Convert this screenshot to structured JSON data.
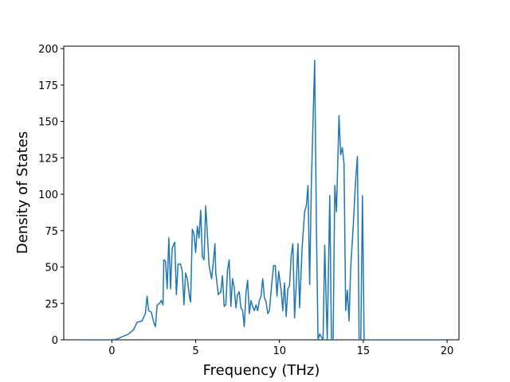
{
  "chart_data": {
    "type": "line",
    "xlabel": "Frequency (THz)",
    "ylabel": "Density of States",
    "x": [
      -1.8,
      0,
      0.3,
      0.6,
      1.0,
      1.3,
      1.5,
      1.8,
      2.0,
      2.1,
      2.2,
      2.35,
      2.5,
      2.6,
      2.7,
      2.85,
      2.95,
      3.05,
      3.1,
      3.2,
      3.3,
      3.4,
      3.5,
      3.6,
      3.75,
      3.85,
      3.95,
      4.1,
      4.2,
      4.3,
      4.4,
      4.5,
      4.65,
      4.7,
      4.8,
      4.9,
      5.0,
      5.1,
      5.2,
      5.3,
      5.4,
      5.5,
      5.6,
      5.7,
      5.8,
      5.95,
      6.05,
      6.15,
      6.2,
      6.35,
      6.5,
      6.6,
      6.7,
      6.8,
      6.9,
      7.0,
      7.1,
      7.2,
      7.3,
      7.4,
      7.5,
      7.6,
      7.7,
      7.8,
      7.9,
      8.0,
      8.1,
      8.2,
      8.3,
      8.4,
      8.5,
      8.6,
      8.7,
      8.8,
      8.9,
      9.0,
      9.1,
      9.2,
      9.3,
      9.4,
      9.55,
      9.65,
      9.75,
      9.85,
      9.95,
      10.1,
      10.2,
      10.3,
      10.4,
      10.5,
      10.6,
      10.7,
      10.8,
      10.9,
      11.0,
      11.1,
      11.2,
      11.35,
      11.5,
      11.6,
      11.7,
      11.8,
      11.9,
      12.1,
      12.2,
      12.3,
      12.4,
      12.5,
      12.6,
      12.7,
      12.8,
      12.85,
      13.0,
      13.1,
      13.2,
      13.3,
      13.4,
      13.55,
      13.65,
      13.75,
      13.85,
      13.95,
      14.05,
      14.15,
      14.25,
      14.4,
      14.55,
      14.65,
      14.75,
      14.85,
      14.95,
      15.05,
      15.5,
      19.7
    ],
    "series": [
      {
        "color": "#1f77b4",
        "values": [
          0,
          0,
          0.5,
          2,
          4,
          7,
          12,
          13,
          18,
          30,
          20,
          19,
          12,
          9,
          24,
          25,
          27,
          24,
          55,
          54,
          35,
          70,
          35,
          63,
          67,
          31,
          52,
          52,
          47,
          24,
          46,
          42,
          28,
          26,
          76,
          73,
          60,
          78,
          70,
          89,
          57,
          55,
          92,
          72,
          51,
          42,
          53,
          66,
          46,
          31,
          33,
          44,
          23,
          24,
          48,
          55,
          23,
          42,
          36,
          22,
          31,
          33,
          22,
          20,
          9,
          32,
          41,
          18,
          27,
          23,
          20,
          24,
          20,
          27,
          30,
          42,
          29,
          26,
          18,
          20,
          40,
          51,
          51,
          30,
          47,
          34,
          20,
          39,
          16,
          35,
          37,
          58,
          66,
          15,
          38,
          66,
          22,
          63,
          88,
          92,
          106,
          38,
          106,
          192,
          80,
          0,
          4,
          2,
          0,
          65,
          20,
          0,
          99,
          0,
          0,
          106,
          88,
          154,
          127,
          132,
          121,
          20,
          34,
          13,
          50,
          78,
          111,
          126,
          0,
          0,
          99,
          0,
          0,
          0
        ]
      }
    ],
    "xlim": [
      -2.87,
      20.71
    ],
    "ylim": [
      0,
      201.7
    ],
    "xticks": [
      0,
      5,
      10,
      15,
      20
    ],
    "yticks": [
      0,
      25,
      50,
      75,
      100,
      125,
      150,
      175,
      200
    ]
  }
}
